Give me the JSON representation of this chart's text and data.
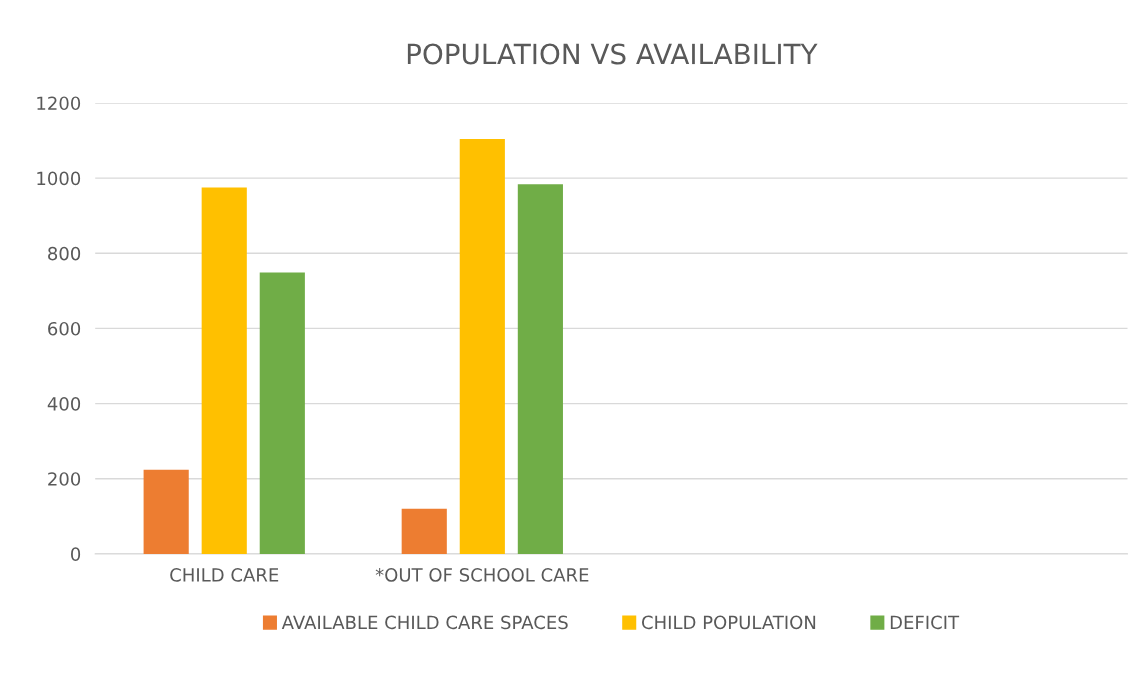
{
  "chart_data": {
    "type": "bar",
    "title": "POPULATION VS AVAILABILITY",
    "categories": [
      "CHILD CARE",
      "*OUT OF SCHOOL CARE",
      null,
      null
    ],
    "series": [
      {
        "name": "AVAILABLE CHILD CARE SPACES",
        "color": "#ed7d31",
        "values": [
          224,
          120,
          null,
          null
        ]
      },
      {
        "name": "CHILD POPULATION",
        "color": "#ffc000",
        "values": [
          975,
          1104,
          null,
          null
        ]
      },
      {
        "name": "DEFICIT",
        "color": "#70ad47",
        "values": [
          749,
          984,
          null,
          null
        ]
      }
    ],
    "ylim": [
      0,
      1200
    ],
    "yticks": [
      0,
      200,
      400,
      600,
      800,
      1000,
      1200
    ],
    "grid": "y",
    "legend": "bottom"
  }
}
